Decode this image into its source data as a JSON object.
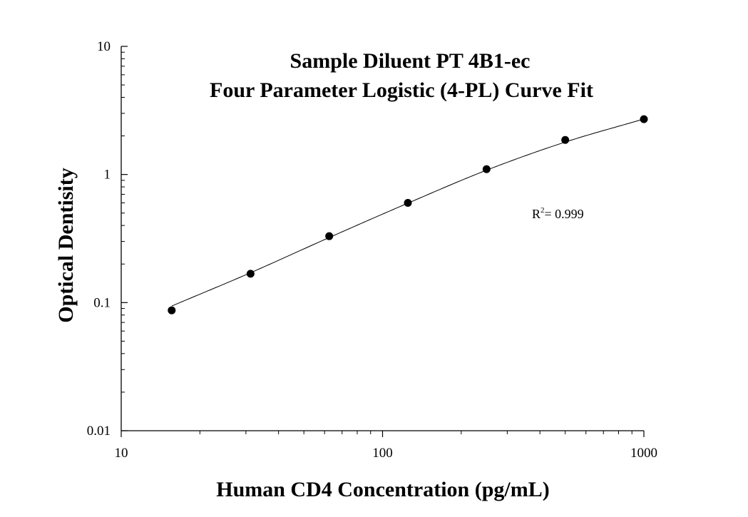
{
  "chart_data": {
    "type": "scatter",
    "title": "Sample Diluent PT 4B1-ec",
    "subtitle": "Four Parameter Logistic (4-PL) Curve Fit",
    "xlabel": "Human CD4 Concentration (pg/mL)",
    "ylabel": "Optical Dentisity",
    "x_scale": "log",
    "y_scale": "log",
    "xlim": [
      10,
      1000
    ],
    "ylim": [
      0.01,
      10
    ],
    "x_ticks": [
      "10",
      "100",
      "1000"
    ],
    "y_ticks": [
      "0.01",
      "0.1",
      "1",
      "10"
    ],
    "grid": false,
    "series": [
      {
        "points": [
          {
            "x": 15.6,
            "y": 0.087
          },
          {
            "x": 31.25,
            "y": 0.168
          },
          {
            "x": 62.5,
            "y": 0.33
          },
          {
            "x": 125,
            "y": 0.6
          },
          {
            "x": 250,
            "y": 1.1
          },
          {
            "x": 500,
            "y": 1.86
          },
          {
            "x": 1000,
            "y": 2.7
          }
        ]
      }
    ],
    "fit_curve": {
      "model": "4-PL",
      "x_range": [
        15.6,
        1000
      ],
      "fit_points": [
        {
          "x": 15.6,
          "y": 0.094
        },
        {
          "x": 31.25,
          "y": 0.171
        },
        {
          "x": 62.5,
          "y": 0.322
        },
        {
          "x": 125,
          "y": 0.597
        },
        {
          "x": 250,
          "y": 1.08
        },
        {
          "x": 500,
          "y": 1.79
        },
        {
          "x": 1000,
          "y": 2.71
        }
      ]
    },
    "annotation": {
      "base": "R",
      "sup": "2",
      "text": "= 0.999"
    }
  }
}
